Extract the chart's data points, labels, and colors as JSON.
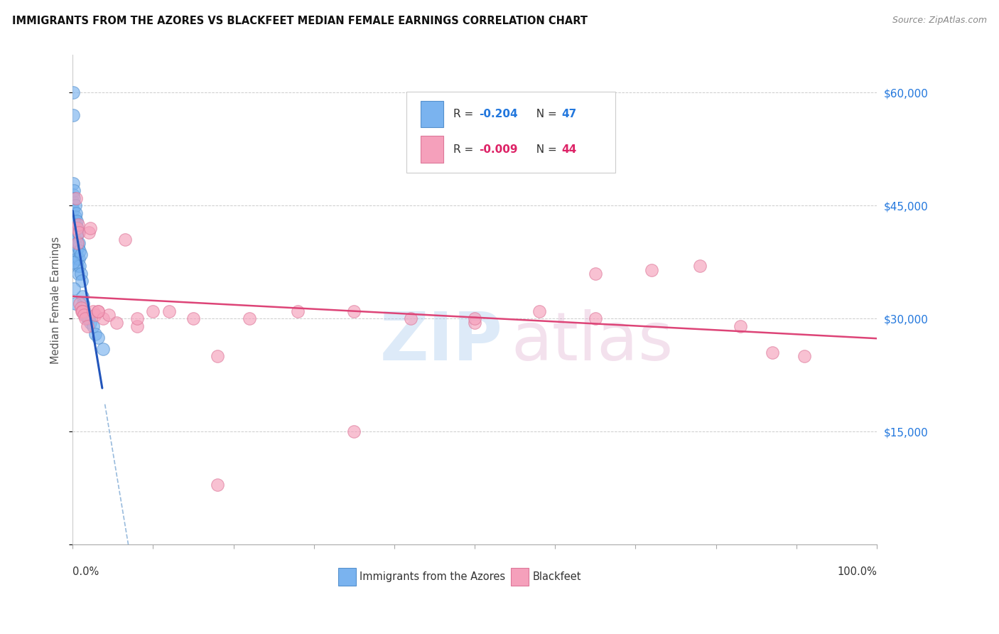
{
  "title": "IMMIGRANTS FROM THE AZORES VS BLACKFEET MEDIAN FEMALE EARNINGS CORRELATION CHART",
  "source": "Source: ZipAtlas.com",
  "ylabel": "Median Female Earnings",
  "series1_label": "Immigrants from the Azores",
  "series1_R": "R = -0.204",
  "series1_N": "N = 47",
  "series1_color": "#7ab3ef",
  "series1_edge": "#5590cc",
  "series2_label": "Blackfeet",
  "series2_R": "R = -0.009",
  "series2_N": "N = 44",
  "series2_color": "#f5a0bb",
  "series2_edge": "#dd7799",
  "watermark_zip": "ZIP",
  "watermark_atlas": "atlas",
  "background_color": "#ffffff",
  "grid_color": "#cccccc",
  "ytick_values": [
    0,
    15000,
    30000,
    45000,
    60000
  ],
  "ylim": [
    0,
    65000
  ],
  "xlim": [
    0.0,
    1.0
  ],
  "azores_x": [
    0.001,
    0.001,
    0.001,
    0.001,
    0.001,
    0.002,
    0.002,
    0.002,
    0.002,
    0.003,
    0.003,
    0.003,
    0.003,
    0.004,
    0.004,
    0.004,
    0.005,
    0.005,
    0.005,
    0.006,
    0.006,
    0.006,
    0.007,
    0.007,
    0.007,
    0.008,
    0.008,
    0.009,
    0.009,
    0.01,
    0.01,
    0.011,
    0.012,
    0.013,
    0.015,
    0.016,
    0.018,
    0.02,
    0.022,
    0.025,
    0.028,
    0.032,
    0.038,
    0.001,
    0.002,
    0.003,
    0.001
  ],
  "azores_y": [
    60000,
    48000,
    46500,
    45500,
    44500,
    47000,
    46000,
    43000,
    41500,
    45000,
    43500,
    42000,
    40500,
    44000,
    42500,
    39000,
    43000,
    41000,
    38000,
    42000,
    40000,
    37000,
    41500,
    39500,
    36000,
    40000,
    38000,
    39000,
    37000,
    38500,
    36000,
    35000,
    33000,
    32000,
    31000,
    30500,
    30000,
    30000,
    29500,
    29000,
    28000,
    27500,
    26000,
    37500,
    34000,
    32000,
    57000
  ],
  "blackfeet_x": [
    0.004,
    0.005,
    0.006,
    0.007,
    0.008,
    0.009,
    0.01,
    0.011,
    0.012,
    0.014,
    0.016,
    0.018,
    0.02,
    0.022,
    0.025,
    0.028,
    0.032,
    0.038,
    0.045,
    0.055,
    0.065,
    0.08,
    0.1,
    0.12,
    0.15,
    0.18,
    0.22,
    0.28,
    0.35,
    0.42,
    0.5,
    0.58,
    0.65,
    0.72,
    0.78,
    0.83,
    0.87,
    0.91,
    0.35,
    0.18,
    0.08,
    0.032,
    0.5,
    0.65
  ],
  "blackfeet_y": [
    46000,
    42000,
    40000,
    42500,
    41500,
    32000,
    31500,
    31000,
    31000,
    30500,
    30000,
    29000,
    41500,
    42000,
    31000,
    30500,
    31000,
    30000,
    30500,
    29500,
    40500,
    29000,
    31000,
    31000,
    30000,
    25000,
    30000,
    31000,
    31000,
    30000,
    29500,
    31000,
    36000,
    36500,
    37000,
    29000,
    25500,
    25000,
    15000,
    8000,
    30000,
    31000,
    30000,
    30000
  ]
}
